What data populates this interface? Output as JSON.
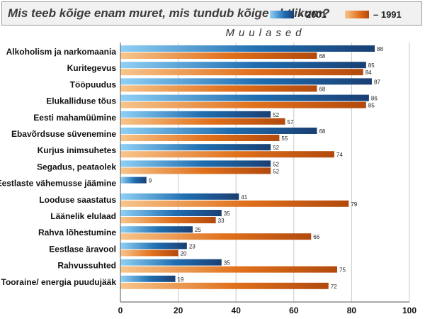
{
  "header": {
    "title": "Mis teeb kõige enam muret, mis tundub kõige ohtlikum?",
    "legend": [
      {
        "label": "– 2001",
        "color": "#1f6db0"
      },
      {
        "label": "– 1991",
        "color": "#e0701c"
      }
    ]
  },
  "chart_data": {
    "type": "bar",
    "orientation": "horizontal",
    "title": "Mis teeb kõige enam muret, mis tundub kõige ohtlikum?",
    "subtitle": "Muulased",
    "categories": [
      "Alkoholism ja narkomaania",
      "Kuritegevus",
      "Tööpuudus",
      "Elukalliduse tõus",
      "Eesti mahamüümine",
      "Ebavõrdsuse süvenemine",
      "Kurjus inimsuhetes",
      "Segadus, peataolek",
      "Eestlaste vähemusse jäämine",
      "Looduse saastatus",
      "Läänelik elulaad",
      "Rahva lõhestumine",
      "Eestlase äravool",
      "Rahvussuhted",
      "Tooraine/ energia puudujääk"
    ],
    "series": [
      {
        "name": "– 2001",
        "color": "#1f6db0",
        "values": [
          88,
          85,
          87,
          86,
          52,
          68,
          52,
          52,
          9,
          41,
          35,
          25,
          23,
          35,
          19
        ]
      },
      {
        "name": "– 1991",
        "color": "#e0701c",
        "values": [
          68,
          84,
          68,
          85,
          57,
          55,
          74,
          52,
          null,
          79,
          33,
          66,
          20,
          75,
          72
        ]
      }
    ],
    "xlim": [
      0,
      100
    ],
    "xticks": [
      0,
      20,
      40,
      60,
      80,
      100
    ],
    "grid": true,
    "legend_position": "top-right"
  }
}
